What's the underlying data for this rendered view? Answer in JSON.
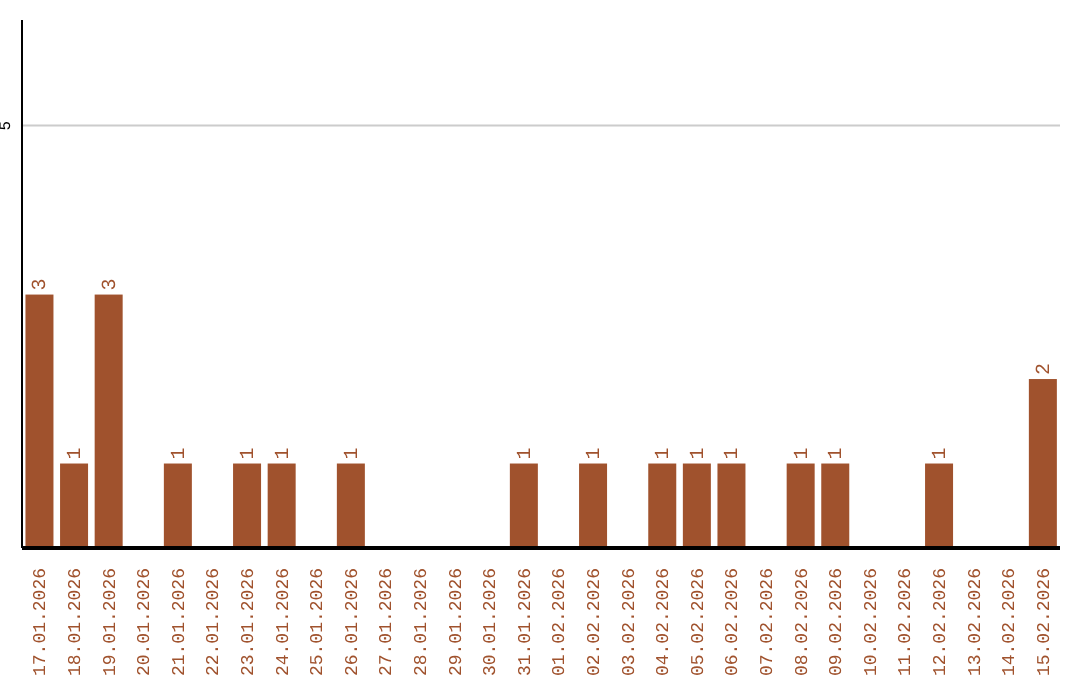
{
  "chart_data": {
    "type": "bar",
    "categories": [
      "17.01.2026",
      "18.01.2026",
      "19.01.2026",
      "20.01.2026",
      "21.01.2026",
      "22.01.2026",
      "23.01.2026",
      "24.01.2026",
      "25.01.2026",
      "26.01.2026",
      "27.01.2026",
      "28.01.2026",
      "29.01.2026",
      "30.01.2026",
      "31.01.2026",
      "01.02.2026",
      "02.02.2026",
      "03.02.2026",
      "04.02.2026",
      "05.02.2026",
      "06.02.2026",
      "07.02.2026",
      "08.02.2026",
      "09.02.2026",
      "10.02.2026",
      "11.02.2026",
      "12.02.2026",
      "13.02.2026",
      "14.02.2026",
      "15.02.2026"
    ],
    "values": [
      3,
      1,
      3,
      0,
      1,
      0,
      1,
      1,
      0,
      1,
      0,
      0,
      0,
      0,
      1,
      0,
      1,
      0,
      1,
      1,
      1,
      0,
      1,
      1,
      0,
      0,
      1,
      0,
      0,
      2
    ],
    "value_labels": [
      "3",
      "1",
      "3",
      null,
      "1",
      null,
      "1",
      "1",
      null,
      "1",
      null,
      null,
      null,
      null,
      "1",
      null,
      "1",
      null,
      "1",
      "1",
      "1",
      null,
      "1",
      "1",
      null,
      null,
      "1",
      null,
      null,
      "2"
    ],
    "color": "#a0522d",
    "ylim": [
      0,
      6.25
    ],
    "yticks": [
      5
    ],
    "grid": "y"
  }
}
